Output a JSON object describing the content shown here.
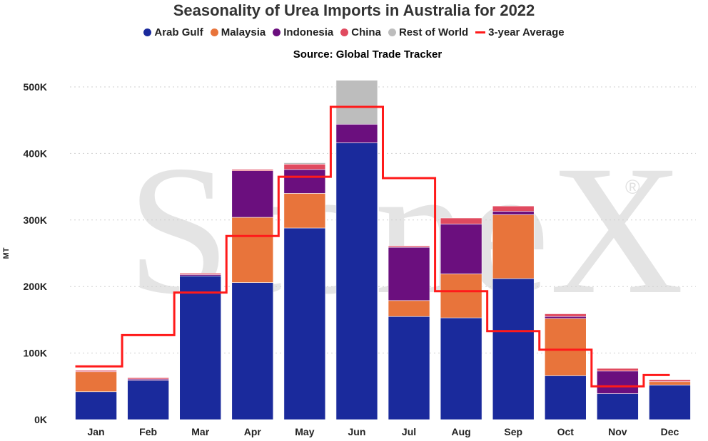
{
  "chart_data": {
    "type": "bar",
    "stacked": true,
    "title": "Seasonality of Urea Imports in Australia for 2022",
    "subtitle": "Source: Global Trade Tracker",
    "ylabel": "MT",
    "xlabel": "",
    "ylim": [
      0,
      510000
    ],
    "yticks": [
      0,
      100000,
      200000,
      300000,
      400000,
      500000
    ],
    "ytick_labels": [
      "0K",
      "100K",
      "200K",
      "300K",
      "400K",
      "500K"
    ],
    "grid": true,
    "legend_position": "top",
    "categories": [
      "Jan",
      "Feb",
      "Mar",
      "Apr",
      "May",
      "Jun",
      "Jul",
      "Aug",
      "Sep",
      "Oct",
      "Nov",
      "Dec"
    ],
    "series": [
      {
        "name": "Arab Gulf",
        "color": "#1a2a9c",
        "values": [
          42000,
          59000,
          216000,
          206000,
          288000,
          416000,
          155000,
          153000,
          212000,
          66000,
          39000,
          52000
        ]
      },
      {
        "name": "Malaysia",
        "color": "#e8743b",
        "values": [
          30000,
          0,
          0,
          98000,
          52000,
          0,
          24000,
          66000,
          96000,
          86000,
          0,
          5000
        ]
      },
      {
        "name": "Indonesia",
        "color": "#6b0f7e",
        "values": [
          0,
          2000,
          2000,
          70000,
          36000,
          28000,
          80000,
          75000,
          5000,
          3000,
          34000,
          0
        ]
      },
      {
        "name": "China",
        "color": "#e04a5f",
        "values": [
          2000,
          2000,
          2000,
          2000,
          8000,
          0,
          2000,
          9000,
          8000,
          4000,
          4000,
          3000
        ]
      },
      {
        "name": "Rest of World",
        "color": "#bdbdbd",
        "values": [
          0,
          0,
          0,
          0,
          2000,
          66000,
          0,
          0,
          0,
          0,
          0,
          0
        ]
      }
    ],
    "line_series": {
      "name": "3-year Average",
      "color": "#ff1a1a",
      "style": "step",
      "values": [
        80000,
        127000,
        191000,
        276000,
        365000,
        470000,
        363000,
        193000,
        133000,
        105000,
        50000,
        67000
      ]
    },
    "watermark": "StoneX"
  }
}
